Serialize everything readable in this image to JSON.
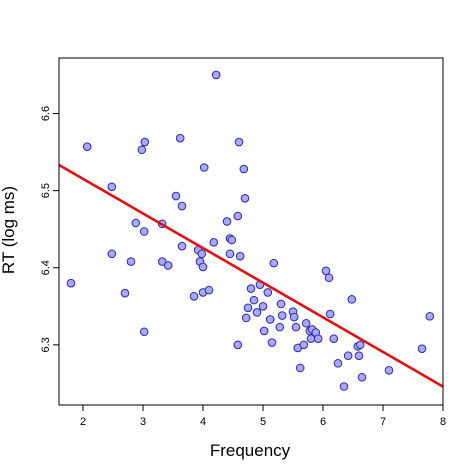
{
  "chart_data": {
    "type": "scatter",
    "title": "",
    "xlabel": "Frequency",
    "ylabel": "RT (log ms)",
    "xlim": [
      1.6,
      8.0
    ],
    "ylim": [
      6.222,
      6.672
    ],
    "xticks": [
      2,
      3,
      4,
      5,
      6,
      7,
      8
    ],
    "yticks": [
      6.3,
      6.4,
      6.5,
      6.6
    ],
    "grid": false,
    "legend": "none",
    "colors": {
      "point_fill": "#a8a8ff",
      "point_stroke": "#2a2aa8",
      "line": "#e41010"
    },
    "points": [
      [
        1.8,
        6.38
      ],
      [
        2.07,
        6.557
      ],
      [
        2.48,
        6.505
      ],
      [
        2.48,
        6.418
      ],
      [
        2.7,
        6.367
      ],
      [
        2.8,
        6.408
      ],
      [
        2.88,
        6.458
      ],
      [
        2.98,
        6.553
      ],
      [
        3.02,
        6.447
      ],
      [
        3.03,
        6.563
      ],
      [
        3.02,
        6.317
      ],
      [
        3.32,
        6.457
      ],
      [
        3.32,
        6.408
      ],
      [
        3.42,
        6.403
      ],
      [
        3.55,
        6.493
      ],
      [
        3.62,
        6.568
      ],
      [
        3.65,
        6.48
      ],
      [
        3.65,
        6.428
      ],
      [
        3.85,
        6.363
      ],
      [
        3.92,
        6.423
      ],
      [
        3.95,
        6.408
      ],
      [
        3.98,
        6.418
      ],
      [
        4.0,
        6.401
      ],
      [
        4.02,
        6.53
      ],
      [
        4.0,
        6.368
      ],
      [
        4.1,
        6.371
      ],
      [
        4.18,
        6.433
      ],
      [
        4.22,
        6.65
      ],
      [
        4.4,
        6.46
      ],
      [
        4.45,
        6.438
      ],
      [
        4.48,
        6.436
      ],
      [
        4.45,
        6.418
      ],
      [
        4.58,
        6.467
      ],
      [
        4.6,
        6.563
      ],
      [
        4.62,
        6.415
      ],
      [
        4.58,
        6.3
      ],
      [
        4.68,
        6.528
      ],
      [
        4.7,
        6.49
      ],
      [
        4.72,
        6.335
      ],
      [
        4.75,
        6.348
      ],
      [
        4.8,
        6.373
      ],
      [
        4.85,
        6.358
      ],
      [
        4.9,
        6.342
      ],
      [
        4.95,
        6.378
      ],
      [
        5.0,
        6.35
      ],
      [
        5.02,
        6.318
      ],
      [
        5.08,
        6.368
      ],
      [
        5.12,
        6.333
      ],
      [
        5.18,
        6.406
      ],
      [
        5.15,
        6.303
      ],
      [
        5.3,
        6.353
      ],
      [
        5.28,
        6.323
      ],
      [
        5.32,
        6.338
      ],
      [
        5.5,
        6.343
      ],
      [
        5.52,
        6.336
      ],
      [
        5.55,
        6.323
      ],
      [
        5.58,
        6.296
      ],
      [
        5.62,
        6.27
      ],
      [
        5.68,
        6.3
      ],
      [
        5.72,
        6.328
      ],
      [
        5.78,
        6.318
      ],
      [
        5.8,
        6.308
      ],
      [
        5.82,
        6.32
      ],
      [
        5.88,
        6.316
      ],
      [
        5.92,
        6.308
      ],
      [
        6.05,
        6.396
      ],
      [
        6.1,
        6.387
      ],
      [
        6.12,
        6.34
      ],
      [
        6.18,
        6.308
      ],
      [
        6.25,
        6.276
      ],
      [
        6.35,
        6.246
      ],
      [
        6.42,
        6.286
      ],
      [
        6.48,
        6.359
      ],
      [
        6.58,
        6.298
      ],
      [
        6.6,
        6.286
      ],
      [
        6.65,
        6.258
      ],
      [
        6.62,
        6.3
      ],
      [
        7.1,
        6.267
      ],
      [
        7.65,
        6.295
      ],
      [
        7.78,
        6.337
      ]
    ],
    "regression": {
      "intercept": 6.6051,
      "slope": -0.0449
    }
  }
}
